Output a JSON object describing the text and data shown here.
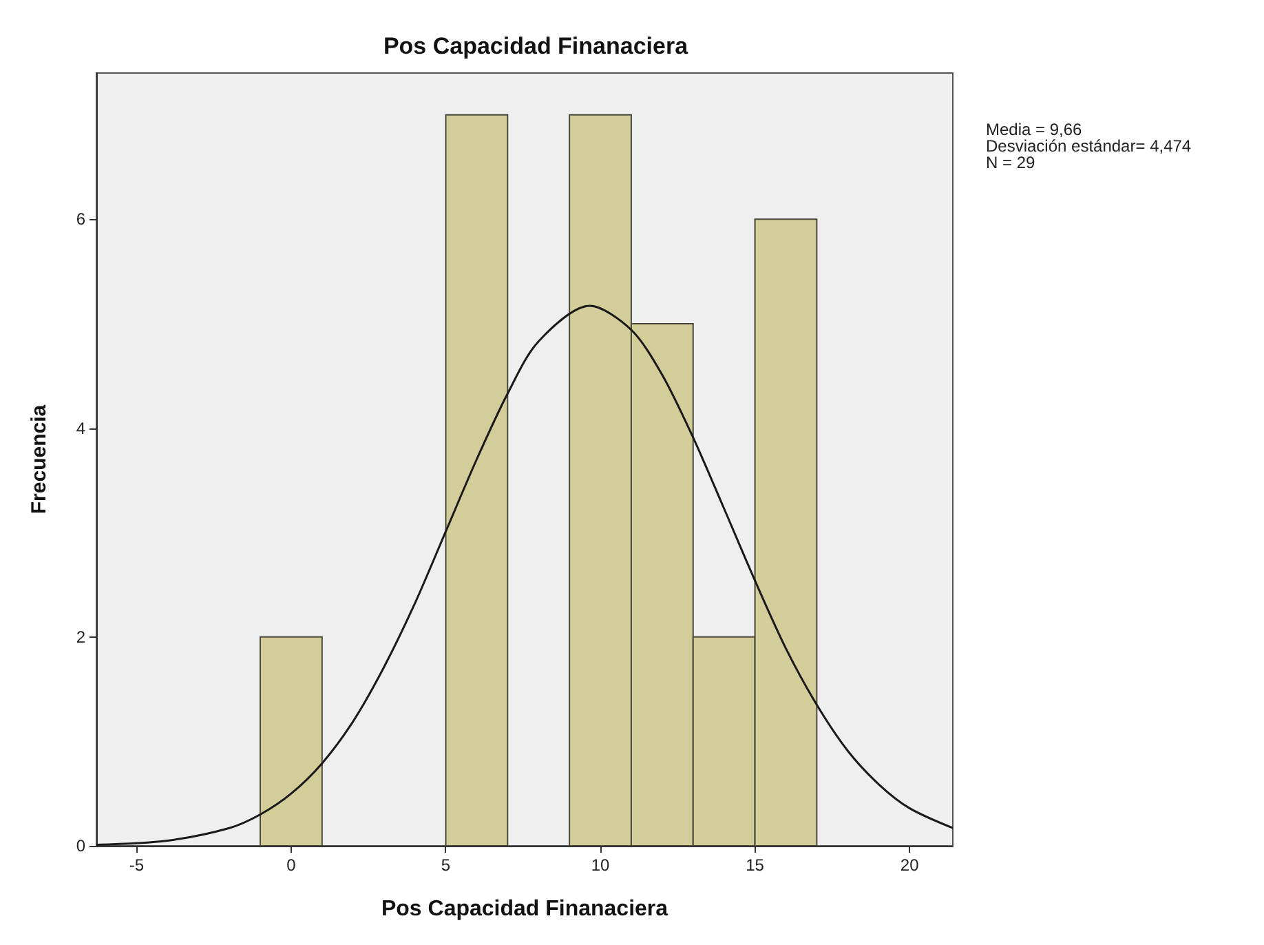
{
  "chart_data": {
    "type": "histogram",
    "title": "Pos Capacidad Finanaciera",
    "xlabel": "Pos Capacidad Finanaciera",
    "ylabel": "Frecuencia",
    "bins": [
      -1,
      1,
      3,
      5,
      7,
      9,
      11,
      13,
      15,
      17
    ],
    "values": [
      2,
      0,
      0,
      7,
      0,
      7,
      5,
      2,
      6
    ],
    "color": "#d3ce99",
    "series": [
      {
        "type": "line",
        "color": "#1a1a1a",
        "x": [
          -6.3,
          -4,
          -2,
          -1,
          0,
          1,
          2,
          3,
          4,
          5,
          6,
          7,
          8,
          9.66,
          11,
          12,
          13,
          14,
          15,
          16,
          17,
          18,
          19,
          20,
          21.4
        ],
        "values": [
          0.01,
          0.05,
          0.17,
          0.3,
          0.5,
          0.79,
          1.19,
          1.71,
          2.32,
          3.01,
          3.7,
          4.33,
          4.83,
          5.17,
          4.94,
          4.51,
          3.91,
          3.23,
          2.54,
          1.89,
          1.35,
          0.91,
          0.59,
          0.36,
          0.17
        ]
      }
    ],
    "xlim": [
      -6.3,
      21.4
    ],
    "ylim": [
      0,
      7.4
    ],
    "xticks": [
      -5,
      0,
      5,
      10,
      15,
      20
    ],
    "yticks": [
      0,
      2,
      4,
      6
    ],
    "grid": false,
    "annotations": [
      "Media = 9,66",
      "Desviación estándar= 4,474",
      "N = 29"
    ]
  }
}
